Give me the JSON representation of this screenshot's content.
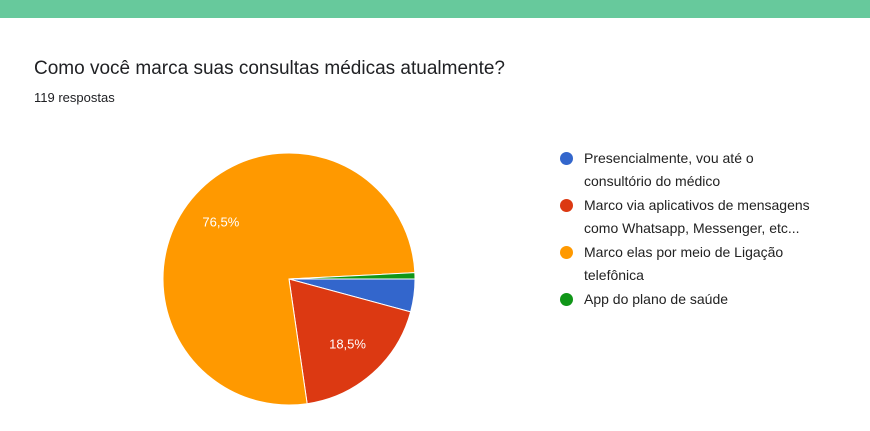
{
  "chart_data": {
    "type": "pie",
    "title": "Como você marca suas consultas médicas atualmente?",
    "subtitle": "119 respostas",
    "categories": [
      "Presencialmente, vou até o consultório do médico",
      "Marco via aplicativos de mensagens como Whatsapp, Messenger, etc...",
      "Marco elas por meio de Ligação telefônica",
      "App do plano de saúde"
    ],
    "values": [
      4.2,
      18.5,
      76.5,
      0.8
    ],
    "value_labels": [
      null,
      "18,5%",
      "76,5%",
      null
    ],
    "colors": [
      "#3366cc",
      "#dc3912",
      "#ff9900",
      "#109618"
    ],
    "legend": "right"
  }
}
